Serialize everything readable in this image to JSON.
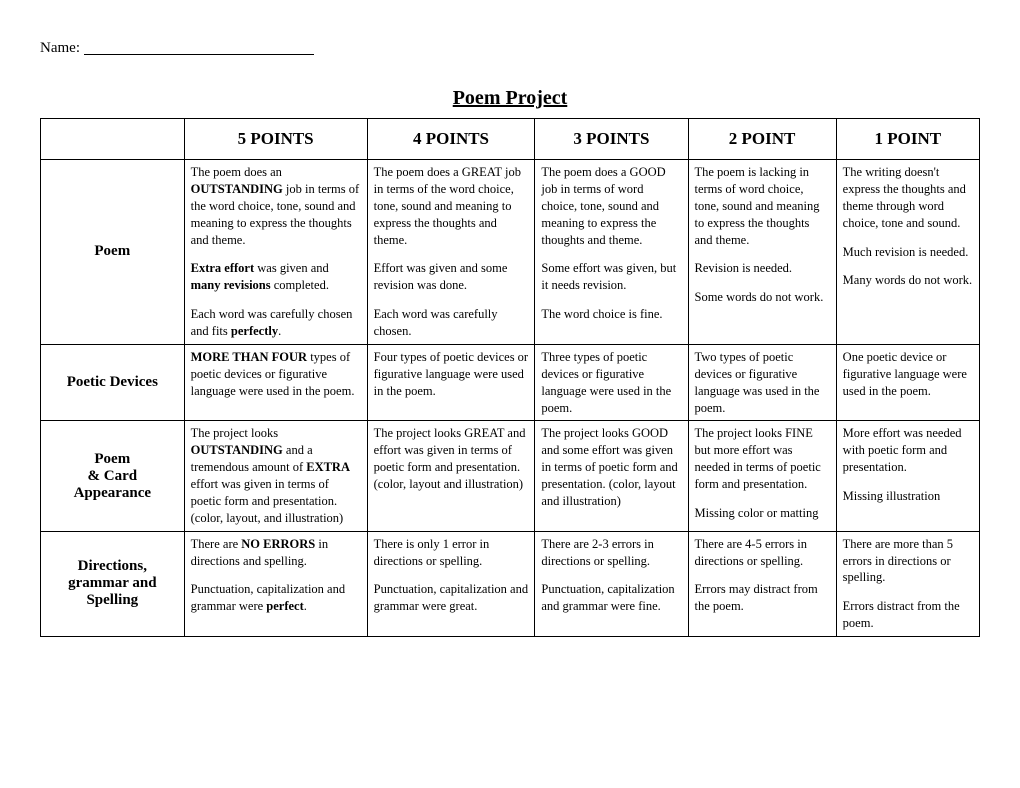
{
  "name_label": "Name:",
  "title": "Poem Project",
  "columns": [
    "5 POINTS",
    "4 POINTS",
    "3 POINTS",
    "2 POINT",
    "1 POINT"
  ],
  "rows": [
    {
      "label": "Poem",
      "cells": [
        "The poem does an <b>OUTSTANDING</b> job in terms of the word choice, tone, sound and meaning to express the thoughts and theme.||<b>Extra effort</b> was given and <b>many revisions</b> completed.||Each word was carefully chosen and fits <b>perfectly</b>.",
        "The poem does a GREAT job in terms of the word choice, tone, sound and meaning to express the thoughts and theme.||Effort was given and some revision was done.||Each word was carefully chosen.",
        "The poem does a GOOD job in terms of word choice, tone, sound and meaning to express the thoughts and theme.||Some effort was given, but it needs revision.||The word choice is fine.",
        "The poem is lacking in terms of word choice, tone, sound and meaning to express the thoughts and theme.||Revision is needed.||Some words do not work.",
        "The writing doesn't express the thoughts and theme through word choice, tone and sound.||Much revision is needed.||Many words do not work."
      ]
    },
    {
      "label": "Poetic Devices",
      "cells": [
        "<b>MORE THAN FOUR</b> types of poetic devices or figurative language were used in the poem.",
        "Four types of poetic devices or figurative language were used in the poem.",
        "Three types of poetic devices or figurative language were used in the poem.",
        "Two types of poetic devices or figurative language was used in the poem.",
        "One poetic device or figurative language were used in the poem."
      ]
    },
    {
      "label": "Poem<br>& Card<br>Appearance",
      "cells": [
        "The project looks <b>OUTSTANDING</b> and a tremendous amount of <b>EXTRA</b> effort was given in terms of poetic form and presentation. (color, layout, and illustration)",
        "The project looks GREAT and effort was given in terms of poetic form and presentation. (color, layout and illustration)",
        "The project looks GOOD and some effort was given in terms of poetic form and presentation. (color, layout and illustration)",
        "The project looks FINE but more effort was needed in terms of poetic form and presentation.||Missing color or matting",
        "More effort was needed with poetic form and presentation.||Missing illustration"
      ]
    },
    {
      "label": "Directions,<br>grammar and<br>Spelling",
      "cells": [
        "There are <b>NO ERRORS</b> in directions and spelling.||Punctuation, capitalization and grammar were <b>perfect</b>.",
        "There is only 1 error in directions or spelling.||Punctuation, capitalization and grammar were great.",
        "There are 2-3 errors in directions or spelling.||Punctuation, capitalization and grammar were fine.",
        "There are 4-5 errors in directions or spelling.||Errors may distract from the poem.",
        "There are more than 5 errors in directions or spelling.||Errors distract from the poem."
      ]
    }
  ]
}
